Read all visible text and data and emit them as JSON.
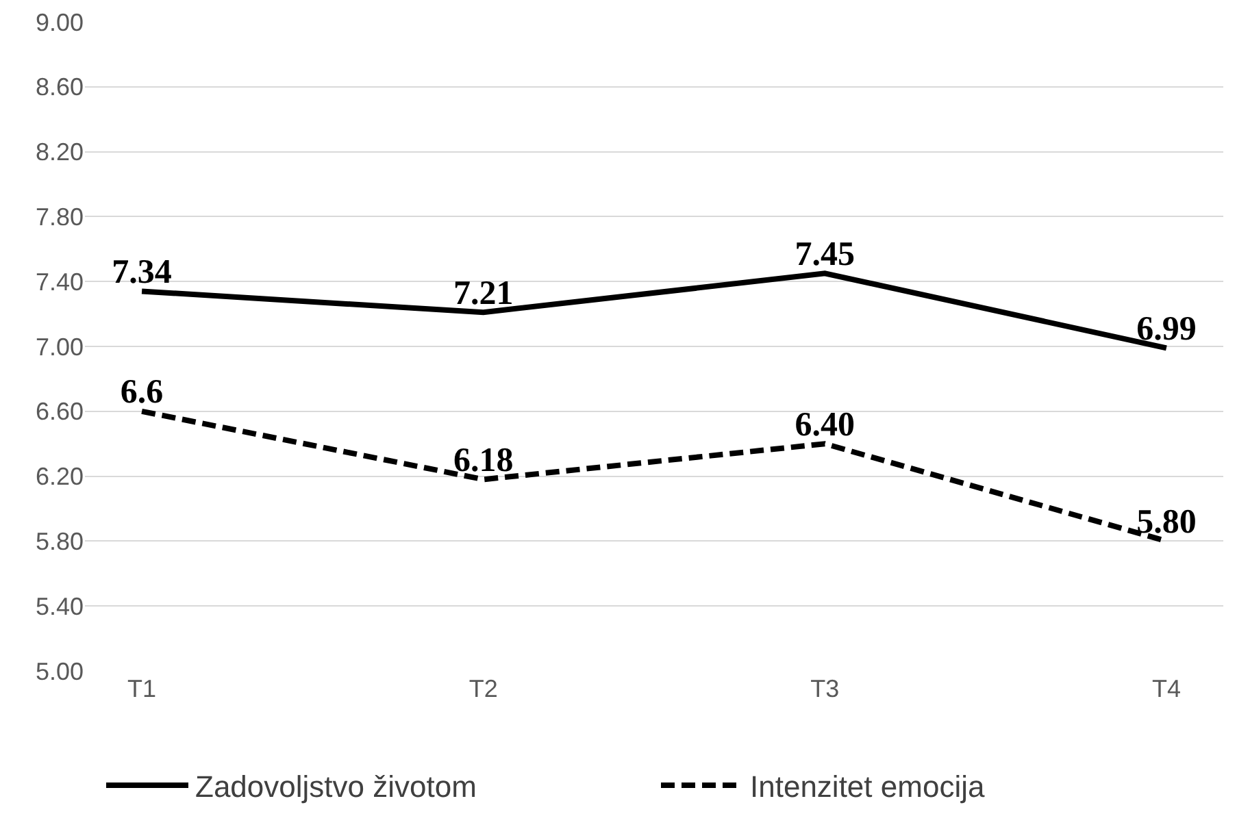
{
  "chart_data": {
    "type": "line",
    "categories": [
      "T1",
      "T2",
      "T3",
      "T4"
    ],
    "series": [
      {
        "name": "Zadovoljstvo životom",
        "color": "#000000",
        "line_style": "solid",
        "values": [
          7.34,
          7.21,
          7.45,
          6.99
        ],
        "value_labels": [
          "7.34",
          "7.21",
          "7.45",
          "6.99"
        ]
      },
      {
        "name": "Intenzitet emocija",
        "color": "#000000",
        "line_style": "dashed",
        "values": [
          6.6,
          6.18,
          6.4,
          5.8
        ],
        "value_labels": [
          "6.6",
          "6.18",
          "6.40",
          "5.80"
        ]
      }
    ],
    "ylim": [
      5,
      9
    ],
    "yticks": [
      {
        "value": 5,
        "label": "5.00"
      },
      {
        "value": 5.4,
        "label": "5.40"
      },
      {
        "value": 5.8,
        "label": "5.80"
      },
      {
        "value": 6.2,
        "label": "6.20"
      },
      {
        "value": 6.6,
        "label": "6.60"
      },
      {
        "value": 7,
        "label": "7.00"
      },
      {
        "value": 7.4,
        "label": "7.40"
      },
      {
        "value": 7.8,
        "label": "7.80"
      },
      {
        "value": 8.2,
        "label": "8.20"
      },
      {
        "value": 8.6,
        "label": "8.60"
      },
      {
        "value": 9,
        "label": "9.00"
      }
    ],
    "grid": "y",
    "legend": "bottom",
    "marker": "none"
  }
}
